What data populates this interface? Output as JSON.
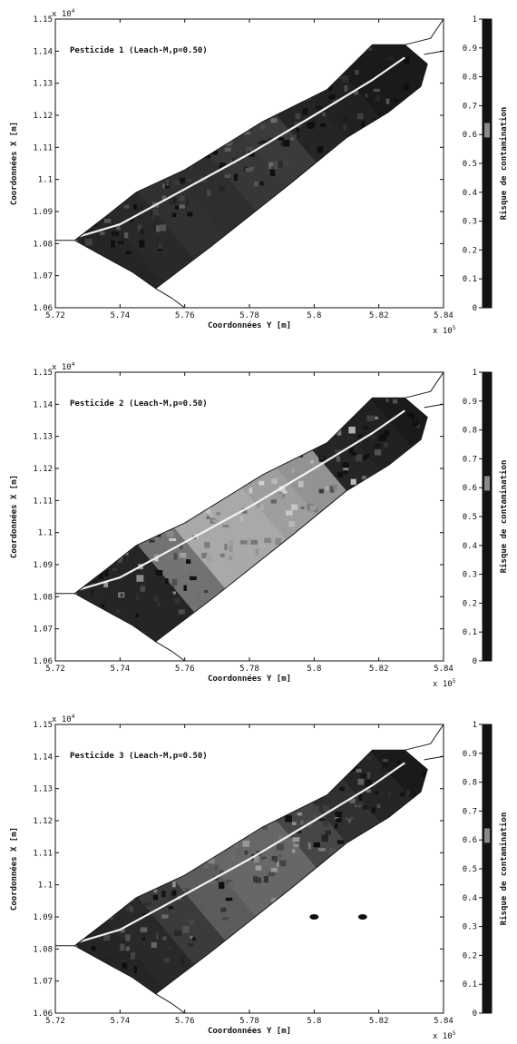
{
  "figure": {
    "colorbar_label": "Risque de contamination",
    "y_multiplier": "x 10",
    "y_multiplier_exp": "4",
    "x_multiplier": "x 10",
    "x_multiplier_exp": "5",
    "colors": {
      "background": "#ffffff",
      "risk_high": "#121212",
      "risk_mid": "#8a8a8a",
      "risk_low": "#d4d4d4",
      "river": "#f2f2f2",
      "outline": "#1a1a1a"
    }
  },
  "chart_data": [
    {
      "type": "heatmap",
      "title": "Pesticide 1 (Leach-M,p=0.50)",
      "xlabel": "Coordonnées Y [m]",
      "ylabel": "Coordonnées X [m]",
      "xlim": [
        5.72,
        5.84
      ],
      "ylim": [
        1.06,
        1.15
      ],
      "x_ticks": [
        "5.72",
        "5.74",
        "5.76",
        "5.78",
        "5.8",
        "5.82",
        "5.84"
      ],
      "y_ticks": [
        "1.06",
        "1.07",
        "1.08",
        "1.09",
        "1.1",
        "1.11",
        "1.12",
        "1.13",
        "1.14",
        "1.15"
      ],
      "colorbar": {
        "label": "Risque de contamination",
        "range": [
          0,
          1
        ],
        "ticks": [
          "0",
          "0.1",
          "0.2",
          "0.3",
          "0.4",
          "0.5",
          "0.6",
          "0.7",
          "0.8",
          "0.9",
          "1"
        ]
      },
      "grid": false,
      "risk_profile": [
        0.9,
        0.88,
        0.85,
        0.86,
        0.82,
        0.8,
        0.9,
        0.92,
        0.95,
        0.95
      ],
      "blobs": []
    },
    {
      "type": "heatmap",
      "title": "Pesticide 2 (Leach-M,p=0.50)",
      "xlabel": "Coordonnées Y [m]",
      "ylabel": "Coordonnées X [m]",
      "xlim": [
        5.72,
        5.84
      ],
      "ylim": [
        1.06,
        1.15
      ],
      "x_ticks": [
        "5.72",
        "5.74",
        "5.76",
        "5.78",
        "5.8",
        "5.82",
        "5.84"
      ],
      "y_ticks": [
        "1.06",
        "1.07",
        "1.08",
        "1.09",
        "1.1",
        "1.11",
        "1.12",
        "1.13",
        "1.14",
        "1.15"
      ],
      "colorbar": {
        "label": "Risque de contamination",
        "range": [
          0,
          1
        ],
        "ticks": [
          "0",
          "0.1",
          "0.2",
          "0.3",
          "0.4",
          "0.5",
          "0.6",
          "0.7",
          "0.8",
          "0.9",
          "1"
        ]
      },
      "grid": false,
      "risk_profile": [
        0.9,
        0.9,
        0.55,
        0.3,
        0.3,
        0.35,
        0.4,
        0.9,
        0.92,
        0.95
      ],
      "blobs": []
    },
    {
      "type": "heatmap",
      "title": "Pesticide 3 (Leach-M,p=0.50)",
      "xlabel": "Coordonnées Y [m]",
      "ylabel": "Coordonnées X [m]",
      "xlim": [
        5.72,
        5.84
      ],
      "ylim": [
        1.06,
        1.15
      ],
      "x_ticks": [
        "5.72",
        "5.74",
        "5.76",
        "5.78",
        "5.8",
        "5.82",
        "5.84"
      ],
      "y_ticks": [
        "1.06",
        "1.07",
        "1.08",
        "1.09",
        "1.1",
        "1.11",
        "1.12",
        "1.13",
        "1.14",
        "1.15"
      ],
      "colorbar": {
        "label": "Risque de contamination",
        "range": [
          0,
          1
        ],
        "ticks": [
          "0",
          "0.1",
          "0.2",
          "0.3",
          "0.4",
          "0.5",
          "0.6",
          "0.7",
          "0.8",
          "0.9",
          "1"
        ]
      },
      "grid": false,
      "risk_profile": [
        0.9,
        0.88,
        0.8,
        0.65,
        0.6,
        0.6,
        0.75,
        0.85,
        0.9,
        0.95
      ],
      "blobs": [
        {
          "x": 5.8,
          "y": 1.09,
          "risk": 1.0
        },
        {
          "x": 5.815,
          "y": 1.09,
          "risk": 1.0
        }
      ]
    }
  ]
}
